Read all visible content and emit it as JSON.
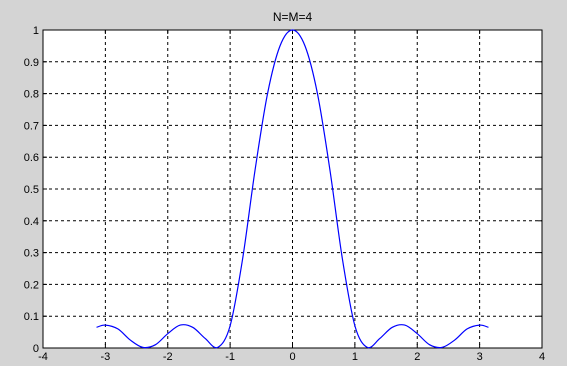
{
  "chart_data": {
    "type": "line",
    "title": "N=M=4",
    "xlabel": "",
    "ylabel": "",
    "xlim": [
      -4,
      4
    ],
    "ylim": [
      0,
      1
    ],
    "xticks": [
      "-4",
      "-3",
      "-2",
      "-1",
      "0",
      "1",
      "2",
      "3",
      "4"
    ],
    "yticks": [
      "0",
      "0.1",
      "0.2",
      "0.3",
      "0.4",
      "0.5",
      "0.6",
      "0.7",
      "0.8",
      "0.9",
      "1"
    ],
    "grid": true,
    "series": [
      {
        "color": "#0000ff",
        "x": [
          -3.1416,
          -3.0,
          -2.8,
          -2.6,
          -2.4,
          -2.2,
          -2.0,
          -1.8,
          -1.6,
          -1.4,
          -1.2,
          -1.0,
          -0.8,
          -0.6,
          -0.4,
          -0.2,
          0.0,
          0.2,
          0.4,
          0.6,
          0.8,
          1.0,
          1.2,
          1.4,
          1.6,
          1.8,
          2.0,
          2.2,
          2.4,
          2.6,
          2.8,
          3.0,
          3.1416
        ],
        "y": [
          0.065,
          0.072,
          0.06,
          0.025,
          0.002,
          0.01,
          0.045,
          0.072,
          0.065,
          0.03,
          0.002,
          0.07,
          0.28,
          0.56,
          0.8,
          0.95,
          1.0,
          0.95,
          0.8,
          0.56,
          0.28,
          0.07,
          0.002,
          0.03,
          0.065,
          0.072,
          0.045,
          0.01,
          0.002,
          0.025,
          0.06,
          0.072,
          0.065
        ]
      }
    ]
  }
}
